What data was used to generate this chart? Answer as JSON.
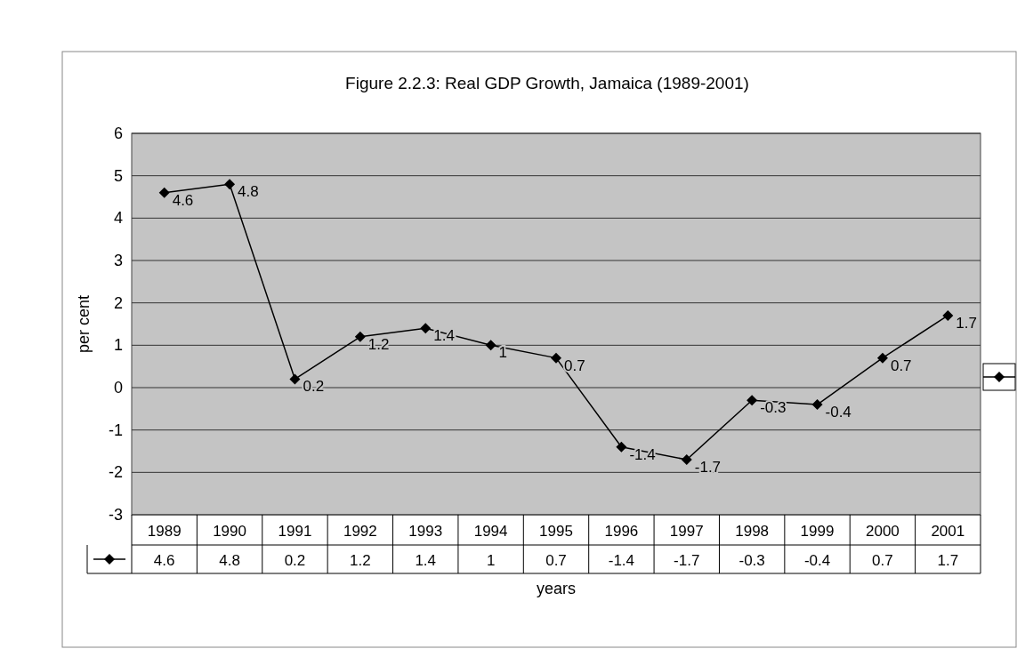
{
  "chart_data": {
    "type": "line",
    "title": "Figure 2.2.3: Real GDP Growth, Jamaica (1989-2001)",
    "xlabel": "years",
    "ylabel": "per cent",
    "categories": [
      "1989",
      "1990",
      "1991",
      "1992",
      "1993",
      "1994",
      "1995",
      "1996",
      "1997",
      "1998",
      "1999",
      "2000",
      "2001"
    ],
    "series": [
      {
        "color": "#000000",
        "values": [
          4.6,
          4.8,
          0.2,
          1.2,
          1.4,
          1,
          0.7,
          -1.4,
          -1.7,
          -0.3,
          -0.4,
          0.7,
          1.7
        ],
        "value_labels": [
          "4.6",
          "4.8",
          "0.2",
          "1.2",
          "1.4",
          "1",
          "0.7",
          "-1.4",
          "-1.7",
          "-0.3",
          "-0.4",
          "0.7",
          "1.7"
        ]
      }
    ],
    "ylim": [
      -3,
      6
    ],
    "yticks": [
      -3,
      -2,
      -1,
      0,
      1,
      2,
      3,
      4,
      5,
      6
    ],
    "grid": "y",
    "marker": "diamond",
    "line_style": "solid"
  }
}
